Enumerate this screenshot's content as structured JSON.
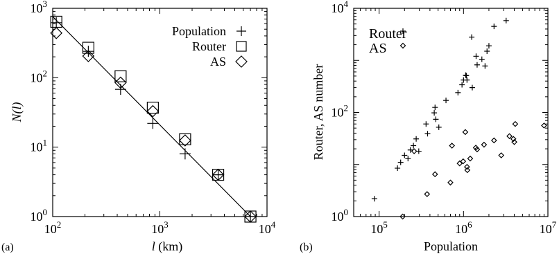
{
  "chart_data": [
    {
      "type": "scatter",
      "panel_label": "(a)",
      "x_scale": "log",
      "y_scale": "log",
      "xlim": [
        100,
        10000
      ],
      "ylim": [
        1,
        1000
      ],
      "xlabel_symbol": "l",
      "xlabel_unit": "(km)",
      "ylabel": "N(l)",
      "x_ticks": [
        {
          "value": 100,
          "base": "10",
          "exp": "2"
        },
        {
          "value": 1000,
          "base": "10",
          "exp": "3"
        },
        {
          "value": 10000,
          "base": "10",
          "exp": "4"
        }
      ],
      "y_ticks": [
        {
          "value": 1,
          "base": "10",
          "exp": "0"
        },
        {
          "value": 10,
          "base": "10",
          "exp": "1"
        },
        {
          "value": 100,
          "base": "10",
          "exp": "2"
        },
        {
          "value": 1000,
          "base": "10",
          "exp": "3"
        }
      ],
      "legend_position": "top-right",
      "series": [
        {
          "name": "Population",
          "marker": "plus",
          "x": [
            108,
            215,
            430,
            860,
            1720,
            3500,
            7000
          ],
          "y": [
            620,
            240,
            68,
            22,
            8,
            4,
            1
          ]
        },
        {
          "name": "Router",
          "marker": "square",
          "x": [
            108,
            215,
            430,
            860,
            1720,
            3500,
            7000
          ],
          "y": [
            640,
            270,
            105,
            37,
            13,
            4,
            1
          ]
        },
        {
          "name": "AS",
          "marker": "diamond",
          "x": [
            108,
            215,
            430,
            860,
            1720,
            3500,
            7000
          ],
          "y": [
            440,
            205,
            85,
            33,
            12.5,
            4,
            1
          ]
        }
      ],
      "fit_line": {
        "x": [
          100,
          7000
        ],
        "y": [
          760,
          1
        ]
      }
    },
    {
      "type": "scatter",
      "panel_label": "(b)",
      "x_scale": "log",
      "y_scale": "log",
      "xlim": [
        50000,
        10000000
      ],
      "ylim": [
        1,
        10000
      ],
      "xlabel": "Population",
      "ylabel": "Router, AS number",
      "x_ticks": [
        {
          "value": 100000,
          "base": "10",
          "exp": "5"
        },
        {
          "value": 1000000,
          "base": "10",
          "exp": "6"
        },
        {
          "value": 10000000,
          "base": "10",
          "exp": "7"
        }
      ],
      "y_ticks": [
        {
          "value": 1,
          "base": "10",
          "exp": "0"
        },
        {
          "value": 100,
          "base": "10",
          "exp": "2"
        },
        {
          "value": 10000,
          "base": "10",
          "exp": "4"
        }
      ],
      "legend_position": "top-left",
      "series": [
        {
          "name": "Router",
          "marker": "plus",
          "x": [
            88000,
            165000,
            180000,
            200000,
            220000,
            235000,
            255000,
            275000,
            295000,
            360000,
            375000,
            450000,
            460000,
            470000,
            510000,
            620000,
            860000,
            960000,
            1000000,
            1060000,
            1080000,
            1100000,
            1250000,
            1270000,
            1410000,
            1450000,
            1650000,
            1800000,
            1900000,
            2000000,
            2300000,
            3200000
          ],
          "y": [
            2.2,
            8.5,
            11,
            15,
            13,
            19,
            23,
            31,
            18,
            60,
            39,
            98,
            125,
            74,
            52,
            170,
            240,
            340,
            420,
            520,
            510,
            420,
            2800,
            300,
            1200,
            820,
            1050,
            780,
            1500,
            1900,
            4500,
            5800
          ]
        },
        {
          "name": "AS",
          "marker": "diamond",
          "x": [
            190000,
            260000,
            370000,
            460000,
            700000,
            730000,
            900000,
            990000,
            1050000,
            1100000,
            1110000,
            1200000,
            1400000,
            1450000,
            1750000,
            2300000,
            2800000,
            3500000,
            3900000,
            4000000,
            4100000,
            9000000
          ],
          "y": [
            1,
            18,
            2.7,
            6.5,
            4.5,
            23,
            10.5,
            11.5,
            42,
            9,
            7.8,
            13,
            21,
            19.5,
            24,
            29,
            15,
            35,
            31,
            27,
            60,
            56
          ]
        }
      ]
    }
  ]
}
